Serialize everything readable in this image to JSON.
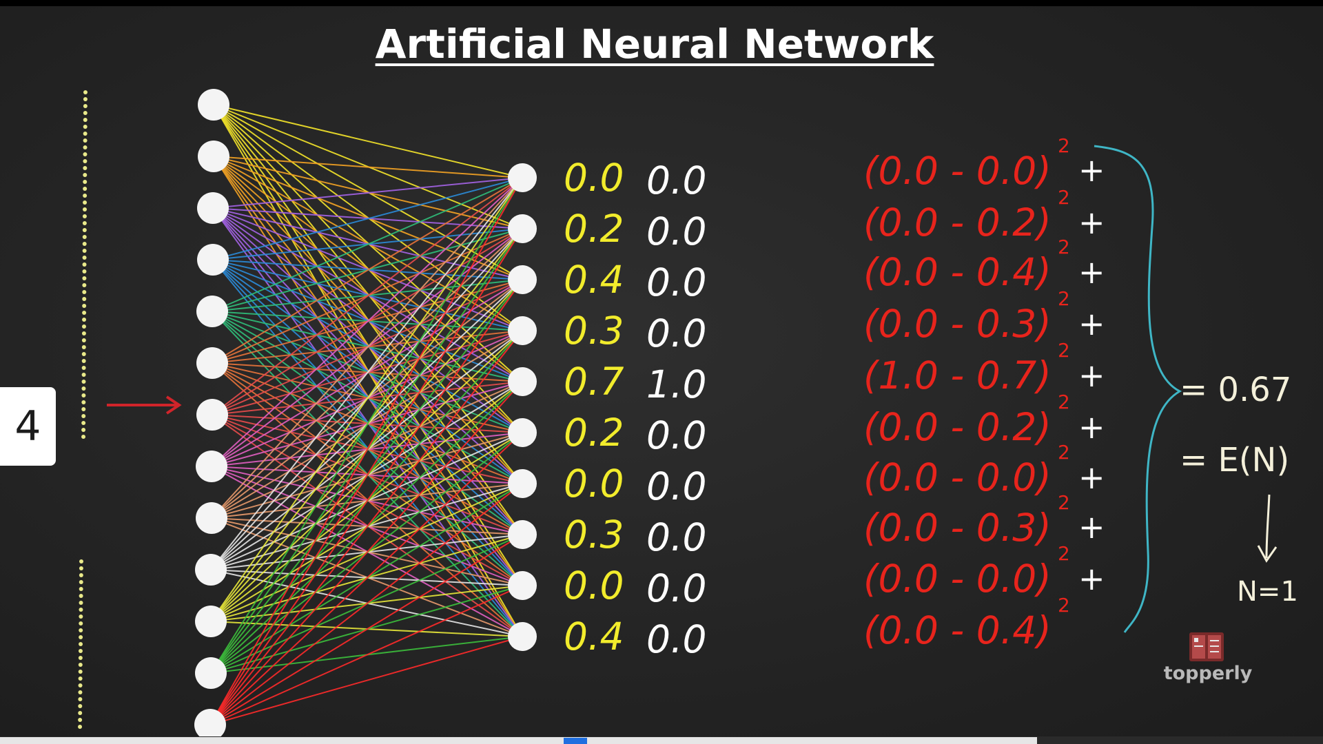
{
  "title": "Artificial Neural Network",
  "sample_index": "4",
  "input_layer": {
    "node_count": 13
  },
  "output_layer": {
    "node_count": 10,
    "predicted": [
      "0.0",
      "0.2",
      "0.4",
      "0.3",
      "0.7",
      "0.2",
      "0.0",
      "0.3",
      "0.0",
      "0.4"
    ],
    "target": [
      "0.0",
      "0.0",
      "0.0",
      "0.0",
      "1.0",
      "0.0",
      "0.0",
      "0.0",
      "0.0",
      "0.0"
    ]
  },
  "error_terms": [
    "(0.0 - 0.0)",
    "(0.0 - 0.2)",
    "(0.0 - 0.4)",
    "(0.0 - 0.3)",
    "(1.0 - 0.7)",
    "(0.0 - 0.2)",
    "(0.0 - 0.0)",
    "(0.0 - 0.3)",
    "(0.0 - 0.0)",
    "(0.0 - 0.4)"
  ],
  "exponent": "2",
  "plus_sign": "+",
  "result": {
    "value_line": "= 0.67",
    "error_line": "= E(N)",
    "n_line": "N=1"
  },
  "logo": {
    "text": "topperly"
  },
  "colors": {
    "background": "#262626",
    "predicted": "#f2ec2c",
    "target": "#ffffff",
    "error": "#e8241c",
    "brace": "#3fb6c6",
    "arrow": "#d0242a",
    "result": "#f4f0da",
    "edge_palette": [
      "#f5e62a",
      "#f4a324",
      "#a463e6",
      "#2a8bd8",
      "#2fbf7a",
      "#e8733a",
      "#e84b4b",
      "#e25fc2",
      "#e89a6b",
      "#e6e6e6",
      "#e8e83a",
      "#3cbf3c",
      "#ff2a2a"
    ]
  }
}
